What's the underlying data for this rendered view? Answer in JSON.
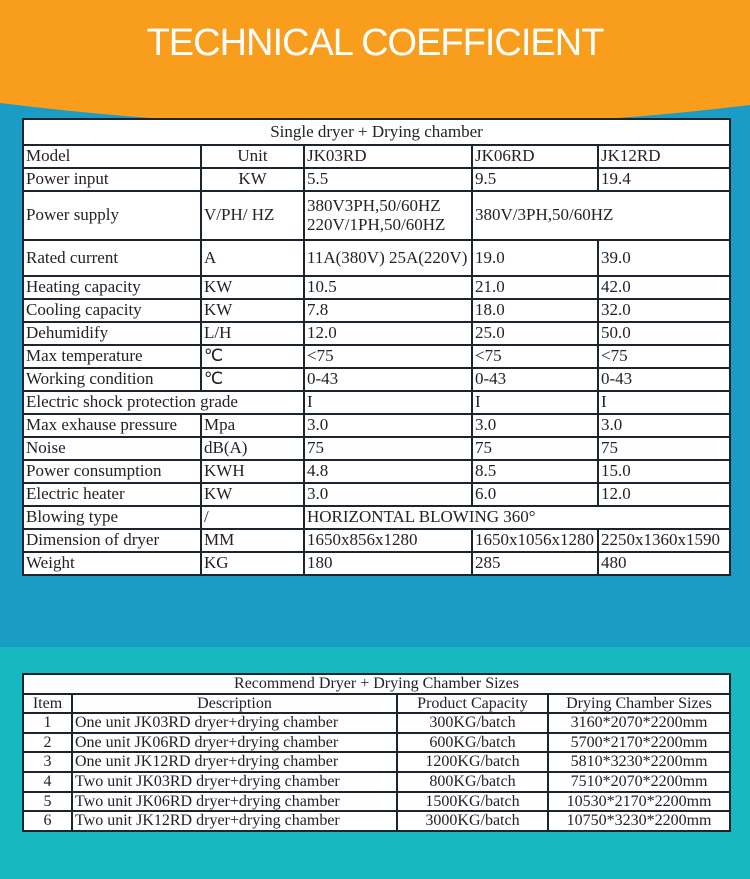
{
  "header": {
    "title": "TECHNICAL COEFFICIENT",
    "colors": {
      "banner": "#f99d1c",
      "upper_bg": "#1a9cc6",
      "lower_bg": "#17b9c0"
    }
  },
  "spec_table": {
    "title": "Single dryer + Drying chamber",
    "header": [
      "Model",
      "Unit",
      "JK03RD",
      "JK06RD",
      "JK12RD"
    ],
    "rows": [
      [
        "Power input",
        "KW",
        "5.5",
        "9.5",
        "19.4"
      ],
      [
        "Power supply",
        "V/PH/ HZ",
        "380V3PH,50/60HZ",
        "220V/1PH,50/60HZ",
        "380V/3PH,50/60HZ"
      ],
      [
        "Rated current",
        "A",
        "11A(380V) 25A(220V)",
        "19.0",
        "39.0"
      ],
      [
        "Heating capacity",
        "KW",
        "10.5",
        "21.0",
        "42.0"
      ],
      [
        "Cooling capacity",
        "KW",
        "7.8",
        "18.0",
        "32.0"
      ],
      [
        "Dehumidify",
        "L/H",
        "12.0",
        "25.0",
        "50.0"
      ],
      [
        "Max temperature",
        "℃",
        "<75",
        "<75",
        "<75"
      ],
      [
        "Working condition",
        "℃",
        "0-43",
        "0-43",
        "0-43"
      ],
      [
        "Electric shock protection grade",
        "I",
        "I",
        "I"
      ],
      [
        "Max exhause pressure",
        "Mpa",
        "3.0",
        "3.0",
        "3.0"
      ],
      [
        "Noise",
        "dB(A)",
        "75",
        "75",
        "75"
      ],
      [
        "Power consumption",
        "KWH",
        "4.8",
        "8.5",
        "15.0"
      ],
      [
        "Electric heater",
        "KW",
        "3.0",
        "6.0",
        "12.0"
      ],
      [
        "Blowing type",
        "/",
        "HORIZONTAL BLOWING 360°"
      ],
      [
        "Dimension of dryer",
        "MM",
        "1650x856x1280",
        "1650x1056x1280",
        "2250x1360x1590"
      ],
      [
        "Weight",
        "KG",
        "180",
        "285",
        "480"
      ]
    ]
  },
  "recommend_table": {
    "title": "Recommend Dryer + Drying Chamber Sizes",
    "header": [
      "Item",
      "Description",
      "Product Capacity",
      "Drying Chamber Sizes"
    ],
    "rows": [
      [
        "1",
        "One unit JK03RD dryer+drying chamber",
        "300KG/batch",
        "3160*2070*2200mm"
      ],
      [
        "2",
        "One unit JK06RD dryer+drying chamber",
        "600KG/batch",
        "5700*2170*2200mm"
      ],
      [
        "3",
        "One unit JK12RD dryer+drying chamber",
        "1200KG/batch",
        "5810*3230*2200mm"
      ],
      [
        "4",
        "Two unit JK03RD dryer+drying chamber",
        "800KG/batch",
        "7510*2070*2200mm"
      ],
      [
        "5",
        "Two unit JK06RD dryer+drying chamber",
        "1500KG/batch",
        "10530*2170*2200mm"
      ],
      [
        "6",
        "Two unit JK12RD dryer+drying chamber",
        "3000KG/batch",
        "10750*3230*2200mm"
      ]
    ]
  }
}
